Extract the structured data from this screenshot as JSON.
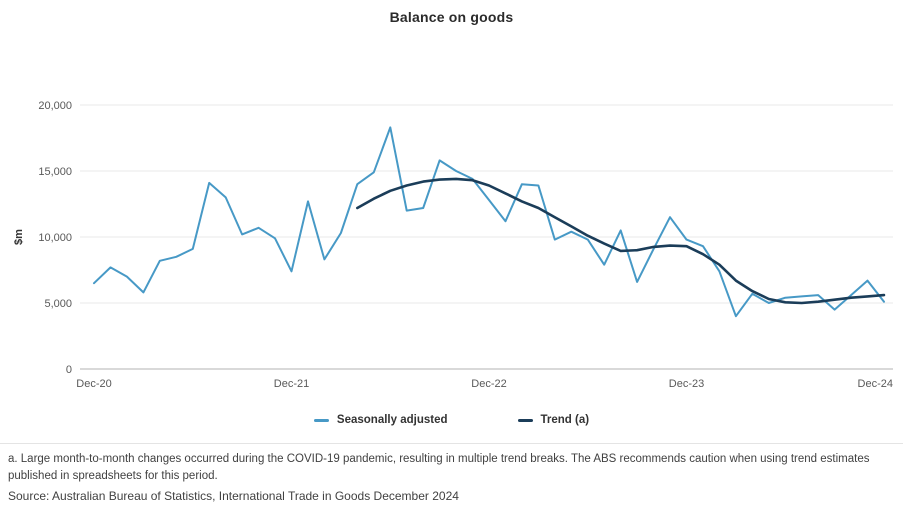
{
  "title": "Balance on goods",
  "y_axis": {
    "label": "$m",
    "ticks": [
      {
        "value": 0,
        "label": "0"
      },
      {
        "value": 5000,
        "label": "5,000"
      },
      {
        "value": 10000,
        "label": "10,000"
      },
      {
        "value": 15000,
        "label": "15,000"
      },
      {
        "value": 20000,
        "label": "20,000"
      }
    ]
  },
  "x_axis": {
    "ticks": [
      {
        "index": 0,
        "label": "Dec-20"
      },
      {
        "index": 12,
        "label": "Dec-21"
      },
      {
        "index": 24,
        "label": "Dec-22"
      },
      {
        "index": 36,
        "label": "Dec-23"
      },
      {
        "index": 48,
        "label": "Dec-24"
      }
    ]
  },
  "legend": [
    {
      "label": "Seasonally adjusted",
      "color": "#4799c6"
    },
    {
      "label": "Trend (a)",
      "color": "#1b3d59"
    }
  ],
  "footnote": "a. Large month-to-month changes occurred during the COVID-19 pandemic, resulting in multiple trend breaks. The ABS recommends caution when using trend estimates published in spreadsheets for this period.",
  "source": "Source: Australian Bureau of Statistics, International Trade in Goods December 2024",
  "colors": {
    "seasonally_adjusted": "#4799c6",
    "trend": "#1b3d59",
    "gridline": "#e9e9e9",
    "axis_line": "#b3b3b3",
    "tick_text": "#595959"
  },
  "chart_data": {
    "type": "line",
    "title": "Balance on goods",
    "ylabel": "$m",
    "ylim": [
      0,
      20000
    ],
    "grid": "horizontal",
    "legend_position": "bottom",
    "x": [
      "Dec-20",
      "Jan-21",
      "Feb-21",
      "Mar-21",
      "Apr-21",
      "May-21",
      "Jun-21",
      "Jul-21",
      "Aug-21",
      "Sep-21",
      "Oct-21",
      "Nov-21",
      "Dec-21",
      "Jan-22",
      "Feb-22",
      "Mar-22",
      "Apr-22",
      "May-22",
      "Jun-22",
      "Jul-22",
      "Aug-22",
      "Sep-22",
      "Oct-22",
      "Nov-22",
      "Dec-22",
      "Jan-23",
      "Feb-23",
      "Mar-23",
      "Apr-23",
      "May-23",
      "Jun-23",
      "Jul-23",
      "Aug-23",
      "Sep-23",
      "Oct-23",
      "Nov-23",
      "Dec-23",
      "Jan-24",
      "Feb-24",
      "Mar-24",
      "Apr-24",
      "May-24",
      "Jun-24",
      "Jul-24",
      "Aug-24",
      "Sep-24",
      "Oct-24",
      "Nov-24",
      "Dec-24"
    ],
    "series": [
      {
        "name": "Seasonally adjusted",
        "color": "#4799c6",
        "start_index": 0,
        "values": [
          6500,
          7700,
          7000,
          5800,
          8200,
          8500,
          9100,
          14100,
          13000,
          10200,
          10700,
          9900,
          7400,
          12700,
          8300,
          10300,
          14000,
          14900,
          18300,
          12000,
          12200,
          15800,
          15000,
          14400,
          12800,
          11200,
          14000,
          13900,
          9800,
          10400,
          9800,
          7900,
          10500,
          6600,
          9100,
          11500,
          9800,
          9300,
          7400,
          4000,
          5700,
          5000,
          5400,
          5500,
          5600,
          4500,
          5600,
          6700,
          5100
        ]
      },
      {
        "name": "Trend (a)",
        "color": "#1b3d59",
        "start_index": 16,
        "values": [
          12200,
          12900,
          13500,
          13900,
          14200,
          14350,
          14400,
          14300,
          13900,
          13300,
          12700,
          12200,
          11500,
          10800,
          10100,
          9500,
          8950,
          9000,
          9250,
          9350,
          9300,
          8700,
          7900,
          6700,
          5900,
          5300,
          5050,
          5000,
          5100,
          5250,
          5400,
          5500,
          5600
        ]
      }
    ]
  }
}
